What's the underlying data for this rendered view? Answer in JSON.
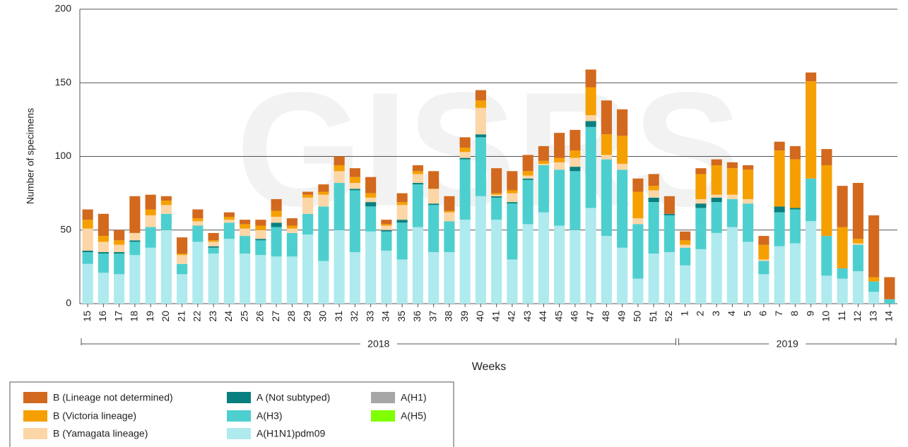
{
  "chart_data": {
    "type": "stacked_bar",
    "watermark": "GISRS",
    "x_label": "Weeks",
    "y_label": "Number of specimens",
    "categories": [
      "15",
      "16",
      "17",
      "18",
      "19",
      "20",
      "21",
      "22",
      "23",
      "24",
      "25",
      "26",
      "27",
      "28",
      "29",
      "30",
      "31",
      "32",
      "33",
      "34",
      "35",
      "36",
      "37",
      "38",
      "39",
      "40",
      "41",
      "42",
      "43",
      "44",
      "45",
      "46",
      "47",
      "48",
      "49",
      "50",
      "51",
      "52",
      "1",
      "2",
      "3",
      "4",
      "5",
      "6",
      "7",
      "8",
      "9",
      "10",
      "11",
      "12",
      "13",
      "14"
    ],
    "year_groups": [
      {
        "label": "2018",
        "count": 38
      },
      {
        "label": "2019",
        "count": 14
      }
    ],
    "ylim": [
      0,
      200
    ],
    "yticks": [
      0,
      50,
      100,
      150,
      200
    ],
    "grid": true,
    "series": [
      {
        "name": "A(H1N1)pdm09",
        "color": "#aeeaee",
        "values": [
          27,
          21,
          20,
          33,
          38,
          50,
          20,
          42,
          34,
          44,
          34,
          33,
          32,
          32,
          47,
          29,
          50,
          35,
          49,
          36,
          30,
          52,
          35,
          35,
          57,
          73,
          57,
          30,
          54,
          62,
          53,
          50,
          65,
          46,
          38,
          17,
          34,
          35,
          26,
          37,
          48,
          52,
          42,
          20,
          39,
          41,
          56,
          19,
          17,
          22,
          8,
          0
        ]
      },
      {
        "name": "A(H3)",
        "color": "#4ecfcf",
        "values": [
          8,
          13,
          14,
          9,
          14,
          11,
          7,
          11,
          4,
          11,
          12,
          10,
          20,
          16,
          14,
          37,
          32,
          42,
          17,
          13,
          25,
          29,
          32,
          21,
          41,
          40,
          15,
          38,
          30,
          32,
          38,
          40,
          55,
          52,
          53,
          37,
          35,
          25,
          12,
          28,
          21,
          19,
          26,
          9,
          23,
          23,
          29,
          27,
          7,
          18,
          7,
          3
        ]
      },
      {
        "name": "A (Not subtyped)",
        "color": "#0a7f7f",
        "values": [
          1,
          1,
          1,
          1,
          0,
          0,
          0,
          0,
          1,
          0,
          0,
          1,
          3,
          0,
          0,
          0,
          0,
          1,
          3,
          1,
          2,
          1,
          1,
          0,
          1,
          2,
          1,
          1,
          1,
          0,
          0,
          3,
          4,
          0,
          0,
          0,
          3,
          1,
          0,
          3,
          3,
          0,
          0,
          0,
          4,
          1,
          0,
          0,
          0,
          0,
          0,
          0
        ]
      },
      {
        "name": "A(H1)",
        "color": "#a6a6a6",
        "values": [
          0,
          0,
          0,
          0,
          0,
          0,
          0,
          0,
          0,
          0,
          0,
          0,
          0,
          0,
          0,
          0,
          0,
          0,
          0,
          0,
          0,
          0,
          0,
          0,
          0,
          0,
          0,
          0,
          0,
          0,
          0,
          0,
          0,
          0,
          0,
          0,
          0,
          0,
          0,
          0,
          0,
          0,
          0,
          0,
          0,
          0,
          0,
          0,
          0,
          0,
          0,
          0
        ]
      },
      {
        "name": "A(H5)",
        "color": "#7fff00",
        "values": [
          0,
          0,
          0,
          0,
          0,
          0,
          0,
          0,
          0,
          0,
          0,
          0,
          0,
          0,
          0,
          0,
          0,
          0,
          0,
          0,
          0,
          0,
          0,
          0,
          0,
          0,
          0,
          0,
          0,
          0,
          0,
          0,
          0,
          0,
          0,
          0,
          0,
          0,
          0,
          0,
          0,
          0,
          0,
          0,
          0,
          0,
          0,
          0,
          0,
          0,
          0,
          0
        ]
      },
      {
        "name": "B (Yamagata lineage)",
        "color": "#fcd6a6",
        "values": [
          15,
          7,
          5,
          5,
          8,
          6,
          6,
          3,
          3,
          2,
          5,
          6,
          4,
          3,
          11,
          8,
          8,
          4,
          3,
          3,
          10,
          6,
          10,
          6,
          4,
          18,
          1,
          6,
          2,
          1,
          5,
          6,
          4,
          3,
          4,
          4,
          5,
          0,
          2,
          3,
          2,
          3,
          3,
          1,
          0,
          0,
          0,
          0,
          0,
          1,
          0,
          0
        ]
      },
      {
        "name": "B (Victoria lineage)",
        "color": "#f5a000",
        "values": [
          6,
          4,
          3,
          0,
          4,
          3,
          1,
          2,
          1,
          2,
          3,
          3,
          4,
          2,
          2,
          2,
          4,
          4,
          3,
          1,
          2,
          2,
          0,
          1,
          3,
          5,
          1,
          2,
          3,
          2,
          3,
          5,
          19,
          14,
          19,
          18,
          3,
          0,
          3,
          17,
          20,
          18,
          20,
          10,
          38,
          33,
          66,
          48,
          28,
          3,
          3,
          0
        ]
      },
      {
        "name": "B (Lineage not determined)",
        "color": "#d2691e",
        "values": [
          7,
          15,
          7,
          25,
          10,
          3,
          11,
          6,
          5,
          3,
          3,
          4,
          8,
          5,
          2,
          5,
          6,
          6,
          11,
          3,
          6,
          4,
          12,
          10,
          7,
          7,
          17,
          13,
          11,
          10,
          17,
          14,
          12,
          23,
          18,
          9,
          8,
          12,
          6,
          4,
          4,
          4,
          3,
          6,
          6,
          9,
          6,
          11,
          28,
          38,
          42,
          15
        ]
      }
    ]
  }
}
